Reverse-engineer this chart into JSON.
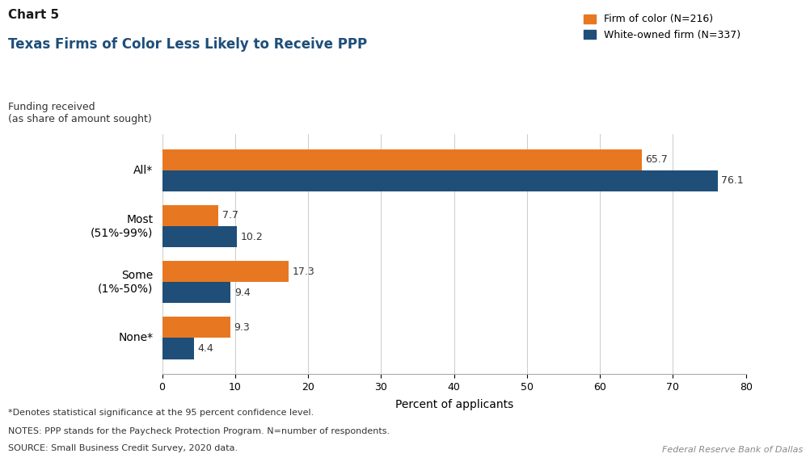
{
  "chart_label": "Chart 5",
  "title": "Texas Firms of Color Less Likely to Receive PPP",
  "ylabel_text": "Funding received\n(as share of amount sought)",
  "xlabel_text": "Percent of applicants",
  "categories": [
    "None*",
    "Some\n(1%-50%)",
    "Most\n(51%-99%)",
    "All*"
  ],
  "firm_of_color": [
    9.3,
    17.3,
    7.7,
    65.7
  ],
  "white_owned": [
    4.4,
    9.4,
    10.2,
    76.1
  ],
  "color_orange": "#E87722",
  "color_blue": "#1F4E79",
  "legend_labels": [
    "Firm of color (N=216)",
    "White-owned firm (N=337)"
  ],
  "xlim": [
    0,
    80
  ],
  "xticks": [
    0,
    10,
    20,
    30,
    40,
    50,
    60,
    70,
    80
  ],
  "footnote1": "*Denotes statistical significance at the 95 percent confidence level.",
  "footnote2": "NOTES: PPP stands for the Paycheck Protection Program. N=number of respondents.",
  "footnote3": "SOURCE: Small Business Credit Survey, 2020 data.",
  "source_right": "Federal Reserve Bank of Dallas",
  "bg_color": "#ffffff",
  "bar_height": 0.38
}
